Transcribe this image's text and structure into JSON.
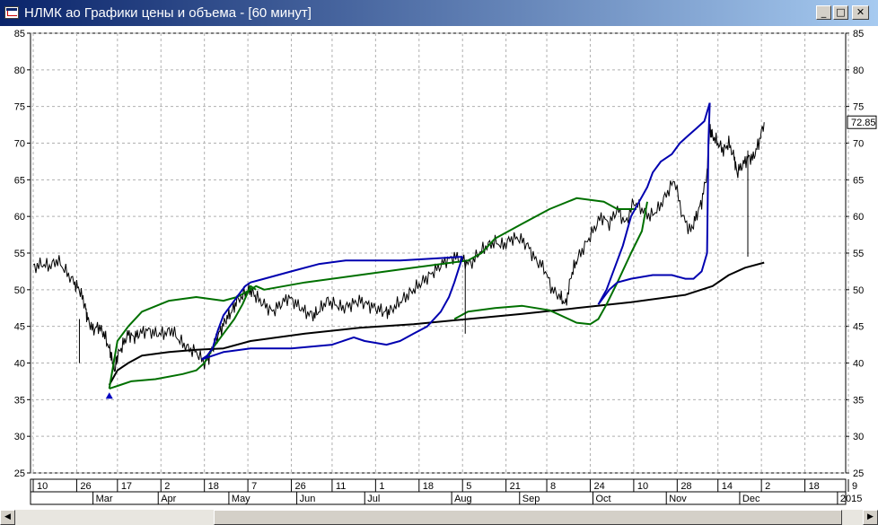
{
  "window": {
    "title": "НЛМК ао Графики цены и объема - [60 минут]",
    "min_glyph": "_",
    "max_glyph": "□",
    "close_glyph": "✕"
  },
  "scrollbar": {
    "left_glyph": "◀",
    "right_glyph": "▶"
  },
  "chart_data": {
    "type": "line",
    "ylim": [
      25,
      85
    ],
    "yticks": [
      25,
      30,
      35,
      40,
      45,
      50,
      55,
      60,
      65,
      70,
      75,
      80,
      85
    ],
    "last_price_label": "72.85",
    "last_price": 72.85,
    "grid": true,
    "xlim": [
      0,
      275
    ],
    "day_ticks": [
      {
        "label": "10",
        "x": 0
      },
      {
        "label": "26",
        "x": 16
      },
      {
        "label": "17",
        "x": 31
      },
      {
        "label": "2",
        "x": 47
      },
      {
        "label": "18",
        "x": 63
      },
      {
        "label": "7",
        "x": 79
      },
      {
        "label": "26",
        "x": 95
      },
      {
        "label": "11",
        "x": 110
      },
      {
        "label": "1",
        "x": 126
      },
      {
        "label": "18",
        "x": 142
      },
      {
        "label": "5",
        "x": 158
      },
      {
        "label": "21",
        "x": 174
      },
      {
        "label": "8",
        "x": 189
      },
      {
        "label": "24",
        "x": 205
      },
      {
        "label": "10",
        "x": 221
      },
      {
        "label": "28",
        "x": 237
      },
      {
        "label": "14",
        "x": 252
      },
      {
        "label": "2",
        "x": 268
      },
      {
        "label": "18",
        "x": 284
      },
      {
        "label": "9",
        "x": 300
      }
    ],
    "month_ticks": [
      {
        "label": "Mar",
        "x": 22
      },
      {
        "label": "Apr",
        "x": 46
      },
      {
        "label": "May",
        "x": 72
      },
      {
        "label": "Jun",
        "x": 97
      },
      {
        "label": "Jul",
        "x": 122
      },
      {
        "label": "Aug",
        "x": 154
      },
      {
        "label": "Sep",
        "x": 179
      },
      {
        "label": "Oct",
        "x": 206
      },
      {
        "label": "Nov",
        "x": 233
      },
      {
        "label": "Dec",
        "x": 260
      },
      {
        "label": "2015",
        "x": 296
      }
    ],
    "series": [
      {
        "color": "#000000",
        "style": "price",
        "points": [
          [
            0,
            53
          ],
          [
            3,
            53.5
          ],
          [
            6,
            53.2
          ],
          [
            9,
            54
          ],
          [
            12,
            52.5
          ],
          [
            15,
            51
          ],
          [
            17,
            50
          ],
          [
            19,
            48
          ],
          [
            20,
            46
          ],
          [
            22,
            44.5
          ],
          [
            24,
            45
          ],
          [
            26,
            44
          ],
          [
            28,
            42
          ],
          [
            29,
            40.5
          ],
          [
            30,
            39
          ],
          [
            31,
            41
          ],
          [
            33,
            42.5
          ],
          [
            35,
            44
          ],
          [
            37,
            43.5
          ],
          [
            39,
            44
          ],
          [
            42,
            44.5
          ],
          [
            45,
            44
          ],
          [
            48,
            44
          ],
          [
            51,
            44.5
          ],
          [
            54,
            43
          ],
          [
            57,
            42
          ],
          [
            60,
            41.5
          ],
          [
            63,
            40
          ],
          [
            65,
            41
          ],
          [
            67,
            43
          ],
          [
            69,
            44.5
          ],
          [
            71,
            46
          ],
          [
            73,
            47
          ],
          [
            75,
            48.5
          ],
          [
            78,
            49.5
          ],
          [
            80,
            50
          ],
          [
            82,
            49
          ],
          [
            85,
            48
          ],
          [
            88,
            47
          ],
          [
            91,
            48
          ],
          [
            94,
            49
          ],
          [
            97,
            48
          ],
          [
            100,
            47
          ],
          [
            103,
            46.5
          ],
          [
            105,
            47
          ],
          [
            108,
            48.5
          ],
          [
            111,
            48
          ],
          [
            114,
            47.5
          ],
          [
            117,
            48
          ],
          [
            120,
            48.5
          ],
          [
            123,
            48
          ],
          [
            126,
            47.5
          ],
          [
            129,
            47
          ],
          [
            131,
            47
          ],
          [
            134,
            48
          ],
          [
            137,
            49
          ],
          [
            140,
            50
          ],
          [
            143,
            51
          ],
          [
            146,
            52
          ],
          [
            149,
            53
          ],
          [
            152,
            54
          ],
          [
            155,
            54.5
          ],
          [
            158,
            54
          ],
          [
            161,
            53.5
          ],
          [
            164,
            55
          ],
          [
            167,
            56
          ],
          [
            170,
            56.5
          ],
          [
            173,
            56
          ],
          [
            176,
            57
          ],
          [
            179,
            57
          ],
          [
            182,
            56
          ],
          [
            185,
            54
          ],
          [
            188,
            53
          ],
          [
            191,
            50
          ],
          [
            194,
            49
          ],
          [
            196,
            48
          ],
          [
            198,
            52
          ],
          [
            200,
            54
          ],
          [
            203,
            56
          ],
          [
            206,
            58
          ],
          [
            209,
            60
          ],
          [
            212,
            59
          ],
          [
            215,
            61
          ],
          [
            218,
            59
          ],
          [
            221,
            62
          ],
          [
            224,
            61
          ],
          [
            227,
            60
          ],
          [
            230,
            61
          ],
          [
            233,
            63
          ],
          [
            236,
            65
          ],
          [
            239,
            60
          ],
          [
            242,
            58
          ],
          [
            244,
            60
          ],
          [
            246,
            62
          ],
          [
            248,
            66
          ],
          [
            249,
            72
          ],
          [
            250,
            71
          ],
          [
            252,
            70
          ],
          [
            254,
            69
          ],
          [
            256,
            70
          ],
          [
            258,
            68
          ],
          [
            259,
            66
          ],
          [
            261,
            67
          ],
          [
            263,
            68
          ],
          [
            265,
            68
          ],
          [
            267,
            70
          ],
          [
            269,
            72.85
          ]
        ]
      },
      {
        "color": "#000000",
        "style": "smooth",
        "points": [
          [
            28,
            37
          ],
          [
            31,
            39
          ],
          [
            35,
            40
          ],
          [
            40,
            41
          ],
          [
            50,
            41.5
          ],
          [
            60,
            41.8
          ],
          [
            70,
            42
          ],
          [
            80,
            43
          ],
          [
            100,
            44
          ],
          [
            120,
            44.8
          ],
          [
            140,
            45.3
          ],
          [
            160,
            46
          ],
          [
            180,
            46.7
          ],
          [
            200,
            47.5
          ],
          [
            220,
            48.3
          ],
          [
            240,
            49.3
          ],
          [
            250,
            50.5
          ],
          [
            256,
            52
          ],
          [
            262,
            53
          ],
          [
            269,
            53.7
          ]
        ]
      },
      {
        "color": "#007000",
        "style": "smooth",
        "points": [
          [
            28,
            36.5
          ],
          [
            31,
            43
          ],
          [
            35,
            45
          ],
          [
            40,
            47
          ],
          [
            50,
            48.5
          ],
          [
            60,
            49
          ],
          [
            70,
            48.5
          ],
          [
            75,
            49
          ],
          [
            80,
            50
          ],
          [
            82,
            50.5
          ],
          [
            85,
            50
          ],
          [
            100,
            51
          ],
          [
            120,
            52
          ],
          [
            140,
            53
          ],
          [
            160,
            54
          ],
          [
            165,
            55
          ],
          [
            170,
            57
          ],
          [
            180,
            59
          ],
          [
            190,
            61
          ],
          [
            200,
            62.5
          ],
          [
            210,
            62
          ],
          [
            215,
            61
          ],
          [
            220,
            61
          ],
          [
            222,
            61
          ]
        ]
      },
      {
        "color": "#007000",
        "style": "smooth",
        "points": [
          [
            28,
            36.5
          ],
          [
            32,
            37
          ],
          [
            36,
            37.5
          ],
          [
            45,
            37.8
          ],
          [
            55,
            38.5
          ],
          [
            60,
            39
          ],
          [
            63,
            40
          ],
          [
            66,
            42
          ],
          [
            70,
            44
          ],
          [
            74,
            46
          ],
          [
            77,
            48
          ],
          [
            80,
            50.5
          ],
          [
            82,
            50
          ]
        ]
      },
      {
        "color": "#007000",
        "style": "smooth",
        "points": [
          [
            155,
            46
          ],
          [
            160,
            47
          ],
          [
            170,
            47.5
          ],
          [
            180,
            47.8
          ],
          [
            190,
            47.2
          ],
          [
            200,
            45.5
          ],
          [
            205,
            45.3
          ],
          [
            208,
            46
          ],
          [
            211,
            48
          ],
          [
            215,
            51
          ],
          [
            220,
            55
          ],
          [
            224,
            58
          ],
          [
            226,
            62
          ]
        ]
      },
      {
        "color": "#0000b0",
        "style": "smooth",
        "points": [
          [
            62,
            40.5
          ],
          [
            64,
            41
          ],
          [
            66,
            42
          ],
          [
            68,
            44.5
          ],
          [
            70,
            46.5
          ],
          [
            73,
            48
          ],
          [
            76,
            49.5
          ],
          [
            78,
            50.5
          ],
          [
            80,
            51
          ],
          [
            85,
            51.5
          ],
          [
            95,
            52.5
          ],
          [
            105,
            53.5
          ],
          [
            115,
            54
          ],
          [
            125,
            54
          ],
          [
            135,
            54
          ],
          [
            145,
            54.2
          ],
          [
            158,
            54.5
          ]
        ]
      },
      {
        "color": "#0000b0",
        "style": "smooth",
        "points": [
          [
            62,
            40.5
          ],
          [
            70,
            41.5
          ],
          [
            80,
            42
          ],
          [
            95,
            42
          ],
          [
            110,
            42.5
          ],
          [
            118,
            43.5
          ],
          [
            122,
            43
          ],
          [
            130,
            42.5
          ],
          [
            135,
            43
          ],
          [
            140,
            44
          ],
          [
            145,
            45
          ],
          [
            150,
            47
          ],
          [
            153,
            49
          ],
          [
            155,
            51
          ],
          [
            158,
            54.5
          ]
        ]
      },
      {
        "color": "#0000b0",
        "style": "smooth",
        "points": [
          [
            208,
            48
          ],
          [
            212,
            50
          ],
          [
            215,
            51
          ],
          [
            220,
            51.5
          ],
          [
            228,
            52
          ],
          [
            235,
            52
          ],
          [
            240,
            51.5
          ],
          [
            243,
            51.5
          ],
          [
            246,
            52.5
          ],
          [
            248,
            55
          ],
          [
            248.5,
            70
          ],
          [
            249,
            75.5
          ]
        ]
      },
      {
        "color": "#0000b0",
        "style": "smooth",
        "points": [
          [
            208,
            48
          ],
          [
            211,
            50
          ],
          [
            214,
            53
          ],
          [
            217,
            56
          ],
          [
            220,
            60
          ],
          [
            223,
            62
          ],
          [
            226,
            64
          ],
          [
            228,
            66
          ],
          [
            231,
            67.5
          ],
          [
            235,
            68.5
          ],
          [
            238,
            70
          ],
          [
            241,
            71
          ],
          [
            244,
            72
          ],
          [
            247,
            73
          ],
          [
            249,
            75.5
          ]
        ]
      }
    ],
    "spikes": [
      [
        17,
        46,
        40
      ],
      [
        159,
        54,
        44
      ],
      [
        263,
        69,
        54.5
      ]
    ],
    "marker": {
      "x": 28,
      "y": 35.5,
      "color": "#0000c0"
    }
  }
}
